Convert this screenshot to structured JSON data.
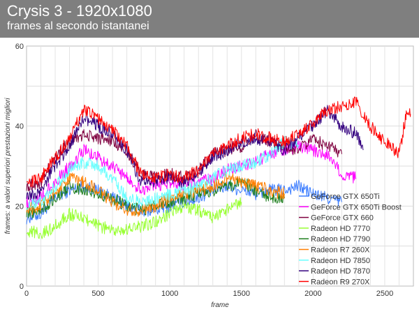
{
  "chart_data": {
    "type": "line",
    "title": "Crysis 3 - 1920x1080",
    "subtitle": "frames al secondo istantanei",
    "xlabel": "frame",
    "ylabel": "frames: a valori superiori prestazioni migliori",
    "xlim": [
      0,
      2700
    ],
    "ylim": [
      0,
      60
    ],
    "x_ticks": [
      "0",
      "500",
      "1000",
      "1500",
      "2000",
      "2500"
    ],
    "y_ticks": [
      "0",
      "20",
      "40",
      "60"
    ],
    "grid": true,
    "legend_position": "bottom-right",
    "series": [
      {
        "name": "GeForce GTX 650Ti",
        "color": "#3f7fff",
        "x": [
          0,
          100,
          200,
          300,
          400,
          500,
          600,
          700,
          800,
          900,
          1000,
          1100,
          1200,
          1300,
          1400,
          1500,
          1600,
          1700,
          1800,
          1900,
          2000,
          2100,
          2200
        ],
        "values": [
          17,
          18,
          22,
          24,
          25,
          24,
          22,
          20,
          19,
          19,
          20,
          21,
          22,
          24,
          25,
          24,
          23,
          24,
          24,
          25,
          23,
          22,
          21
        ]
      },
      {
        "name": "GeForce GTX 650Ti Boost",
        "color": "#ff00ff",
        "x": [
          0,
          100,
          200,
          300,
          400,
          500,
          600,
          700,
          800,
          900,
          1000,
          1100,
          1200,
          1300,
          1400,
          1500,
          1600,
          1700,
          1800,
          1900,
          2000,
          2100,
          2200,
          2300
        ],
        "values": [
          21,
          22,
          26,
          30,
          34,
          32,
          30,
          27,
          24,
          25,
          26,
          25,
          26,
          27,
          29,
          30,
          31,
          33,
          34,
          35,
          34,
          33,
          28,
          27
        ]
      },
      {
        "name": "GeForce GTX 660",
        "color": "#7f003f",
        "x": [
          0,
          100,
          200,
          300,
          400,
          500,
          600,
          700,
          800,
          900,
          1000,
          1100,
          1200,
          1300,
          1400,
          1500,
          1600,
          1700,
          1800,
          1900,
          2000,
          2100,
          2200
        ],
        "values": [
          25,
          26,
          32,
          36,
          38,
          37,
          36,
          34,
          28,
          27,
          28,
          27,
          29,
          33,
          34,
          35,
          38,
          36,
          35,
          34,
          37,
          35,
          33
        ]
      },
      {
        "name": "Radeon HD 7770",
        "color": "#99ff33",
        "x": [
          0,
          100,
          200,
          300,
          400,
          500,
          600,
          700,
          800,
          900,
          1000,
          1100,
          1200,
          1300,
          1400,
          1500
        ],
        "values": [
          14,
          13,
          15,
          18,
          17,
          15,
          14,
          14,
          15,
          16,
          18,
          20,
          19,
          17,
          19,
          21
        ]
      },
      {
        "name": "Radeon HD 7790",
        "color": "#1f7f1f",
        "x": [
          0,
          100,
          200,
          300,
          400,
          500,
          600,
          700,
          800,
          900,
          1000,
          1100,
          1200,
          1300,
          1400,
          1500,
          1600,
          1700,
          1800
        ],
        "values": [
          18,
          19,
          22,
          25,
          24,
          23,
          22,
          20,
          19,
          20,
          21,
          22,
          23,
          24,
          25,
          26,
          24,
          22,
          22
        ]
      },
      {
        "name": "Radeon R7 260X",
        "color": "#ff7f00",
        "x": [
          0,
          100,
          200,
          300,
          400,
          500,
          600,
          700,
          800,
          900,
          1000,
          1100,
          1200,
          1300,
          1400,
          1500,
          1600,
          1700,
          1800
        ],
        "values": [
          19,
          20,
          24,
          27,
          26,
          24,
          21,
          19,
          19,
          20,
          22,
          23,
          24,
          25,
          27,
          26,
          25,
          24,
          23
        ]
      },
      {
        "name": "Radeon HD 7850",
        "color": "#66ffff",
        "x": [
          0,
          100,
          200,
          300,
          400,
          500,
          600,
          700,
          800,
          900,
          1000,
          1100,
          1200,
          1300,
          1400,
          1500,
          1600,
          1700,
          1800,
          1900
        ],
        "values": [
          20,
          21,
          25,
          29,
          31,
          30,
          27,
          22,
          21,
          22,
          23,
          24,
          25,
          27,
          29,
          30,
          31,
          33,
          36,
          35
        ]
      },
      {
        "name": "Radeon HD 7870",
        "color": "#33007f",
        "x": [
          0,
          100,
          200,
          300,
          400,
          500,
          600,
          700,
          800,
          900,
          1000,
          1100,
          1200,
          1300,
          1400,
          1500,
          1600,
          1700,
          1800,
          1900,
          2000,
          2100,
          2200,
          2300,
          2350
        ],
        "values": [
          22,
          24,
          30,
          35,
          42,
          40,
          38,
          34,
          26,
          26,
          27,
          26,
          28,
          32,
          34,
          36,
          37,
          36,
          34,
          37,
          40,
          44,
          40,
          38,
          34
        ]
      },
      {
        "name": "Radeon R9 270X",
        "color": "#ff0000",
        "x": [
          0,
          100,
          200,
          300,
          400,
          500,
          600,
          700,
          800,
          900,
          1000,
          1100,
          1200,
          1300,
          1400,
          1500,
          1600,
          1700,
          1800,
          1900,
          2000,
          2100,
          2200,
          2300,
          2400,
          2500,
          2600,
          2650,
          2680
        ],
        "values": [
          26,
          27,
          32,
          37,
          44,
          42,
          39,
          35,
          28,
          27,
          28,
          27,
          29,
          33,
          35,
          37,
          38,
          37,
          36,
          38,
          41,
          44,
          45,
          46,
          40,
          36,
          33,
          43,
          43
        ]
      }
    ]
  }
}
